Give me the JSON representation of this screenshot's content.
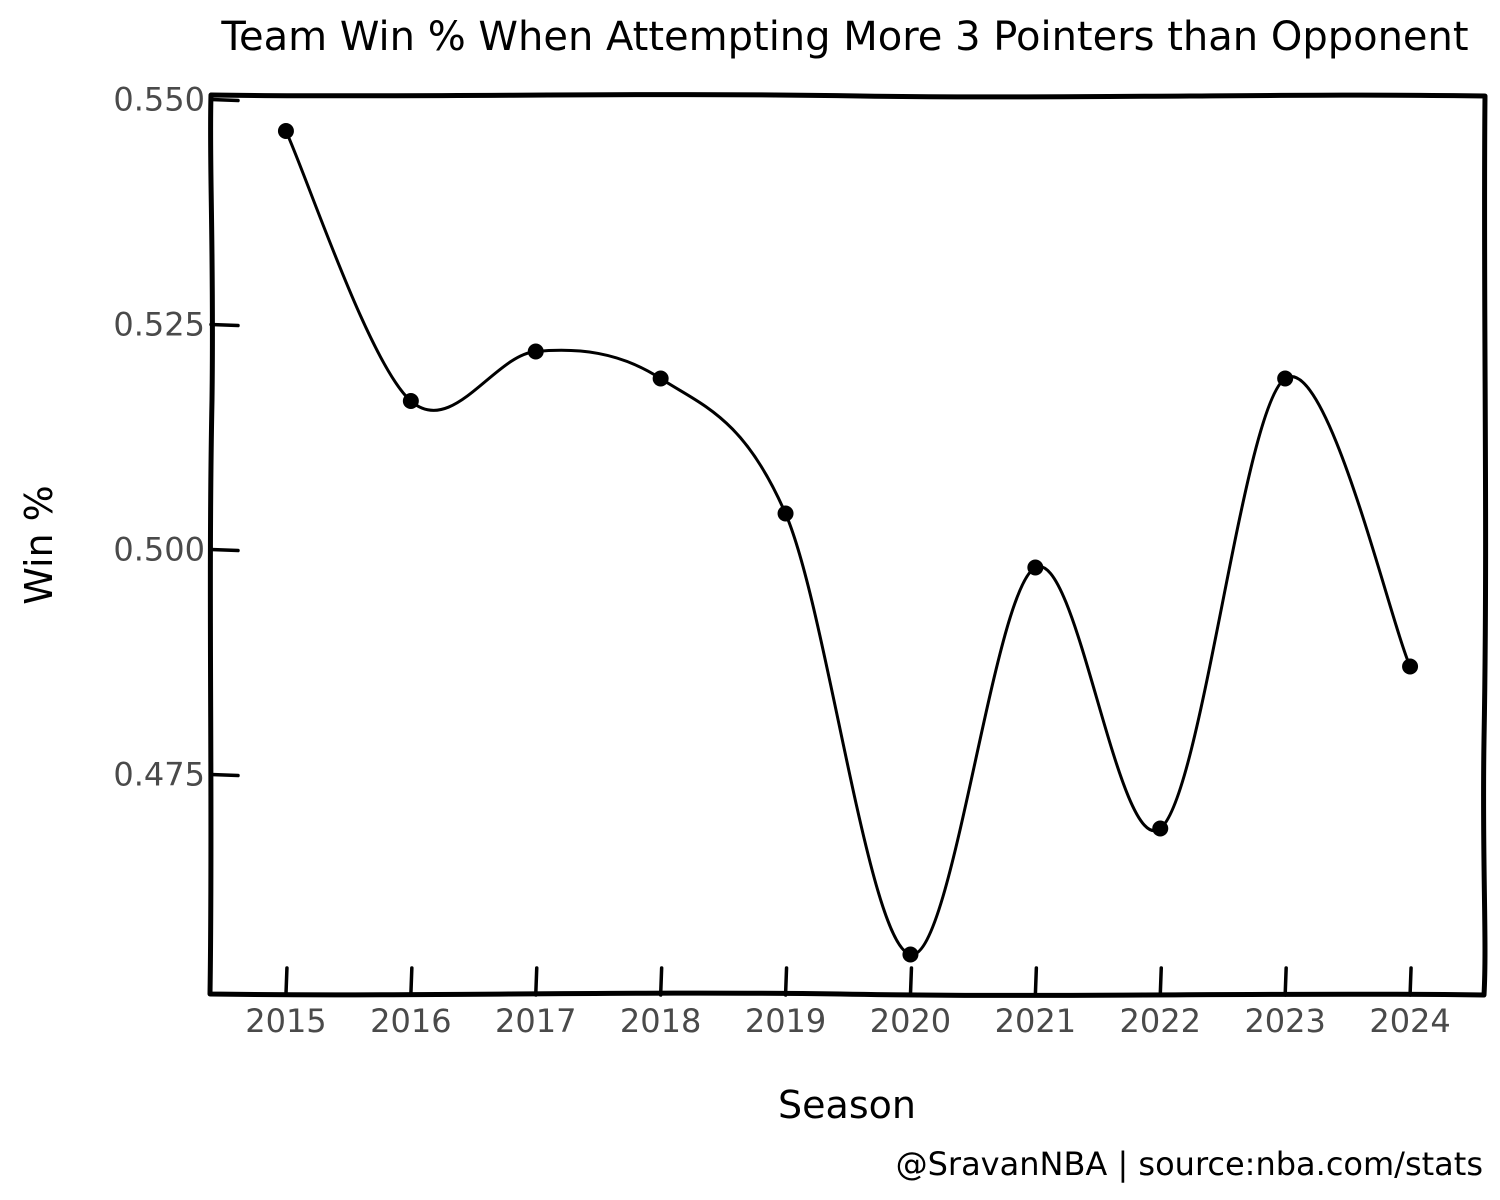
{
  "chart_data": {
    "type": "line",
    "title": "Team Win % When Attempting More 3 Pointers than Opponent",
    "xlabel": "Season",
    "ylabel": "Win %",
    "categories": [
      "2015",
      "2016",
      "2017",
      "2018",
      "2019",
      "2020",
      "2021",
      "2022",
      "2023",
      "2024"
    ],
    "x": [
      2015,
      2016,
      2017,
      2018,
      2019,
      2020,
      2021,
      2022,
      2023,
      2024
    ],
    "values": [
      0.5465,
      0.5165,
      0.522,
      0.519,
      0.504,
      0.455,
      0.498,
      0.469,
      0.519,
      0.487
    ],
    "yticks": [
      0.475,
      0.5,
      0.525,
      0.55
    ],
    "ytick_labels": [
      "0.475",
      "0.500",
      "0.525",
      "0.550"
    ],
    "ylim": [
      0.4505,
      0.5505
    ],
    "xlim": [
      2014.4,
      2024.6
    ],
    "grid": false,
    "colors": {
      "line": "#000000",
      "marker": "#000000",
      "tick_label": "#4a4a4a"
    },
    "credit": "@SravanNBA | source:nba.com/stats"
  }
}
